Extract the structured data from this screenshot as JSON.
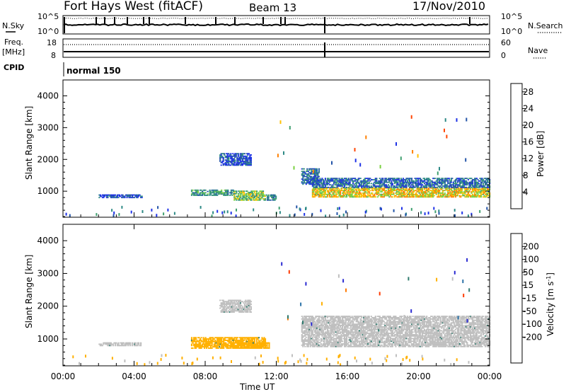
{
  "header": {
    "station": "Fort Hays West (fitACF)",
    "beam": "Beam 13",
    "date": "17/Nov/2010"
  },
  "panels": {
    "nsky_label": "N.Sky",
    "nsearch_label": "N.Search",
    "nsky_ticks": [
      "10^5",
      "10^0"
    ],
    "nsearch_ticks": [
      "10^5",
      "10^0"
    ],
    "freq_label": "Freq.",
    "freq_unit": "[MHz]",
    "freq_ticks": [
      "18",
      "8"
    ],
    "nave_label": "Nave",
    "nave_ticks": [
      "60",
      "0"
    ],
    "cpid_label": "CPID",
    "cpid_value": "normal 150"
  },
  "colors": {
    "power": [
      "#1e32e6",
      "#2354a8",
      "#2e8a86",
      "#40a070",
      "#7ad040",
      "#ffc000",
      "#ff8000",
      "#ff4400",
      "#e80000"
    ],
    "velocity": [
      "#2a2ad2",
      "#2c72a8",
      "#2e7a6e",
      "#70c73a",
      "#bfbfbf",
      "#bfbfbf",
      "#ffb000",
      "#ff7a00",
      "#ff3a00",
      "#e00000"
    ]
  },
  "chart_data": [
    {
      "type": "heatmap",
      "name": "power",
      "xlabel": "",
      "ylabel": "Slant Range [km]",
      "xlim": [
        "00:00",
        "24:00"
      ],
      "ylim": [
        180,
        4500
      ],
      "y_ticks": [
        "1000",
        "2000",
        "3000",
        "4000"
      ],
      "colorbar_label": "Power [dB]",
      "colorbar_ticks": [
        "4",
        "8",
        "12",
        "16",
        "20",
        "24",
        "28"
      ],
      "colorbar_range": [
        0,
        30
      ],
      "regions": [
        {
          "t_start": 2.0,
          "t_end": 4.4,
          "r_min": 780,
          "r_max": 900,
          "power": 4
        },
        {
          "t_start": 7.2,
          "t_end": 9.6,
          "r_min": 850,
          "r_max": 1050,
          "power": 10
        },
        {
          "t_start": 9.6,
          "t_end": 11.4,
          "r_min": 700,
          "r_max": 1000,
          "power": 14
        },
        {
          "t_start": 11.4,
          "t_end": 12.0,
          "r_min": 700,
          "r_max": 900,
          "power": 8
        },
        {
          "t_start": 8.8,
          "t_end": 10.6,
          "r_min": 1800,
          "r_max": 2200,
          "power": 4
        },
        {
          "t_start": 13.4,
          "t_end": 14.4,
          "r_min": 1200,
          "r_max": 1700,
          "power": 6
        },
        {
          "t_start": 14.0,
          "t_end": 24.0,
          "r_min": 800,
          "r_max": 1100,
          "power": 18
        },
        {
          "t_start": 14.0,
          "t_end": 24.0,
          "r_min": 1100,
          "r_max": 1400,
          "power": 6
        }
      ]
    },
    {
      "type": "heatmap",
      "name": "velocity",
      "xlabel": "Time UT",
      "ylabel": "Slant Range [km]",
      "x_ticks": [
        "00:00",
        "04:00",
        "08:00",
        "12:00",
        "16:00",
        "20:00",
        "00:00"
      ],
      "ylim": [
        180,
        4500
      ],
      "y_ticks": [
        "1000",
        "2000",
        "3000",
        "4000"
      ],
      "colorbar_label": "Velocity [m s^-1]",
      "colorbar_ticks": [
        "200",
        "100",
        "50",
        "15",
        "-15",
        "-50",
        "-100",
        "-200"
      ],
      "colorbar_range": [
        -250,
        250
      ],
      "regions": [
        {
          "t_start": 2.0,
          "t_end": 4.4,
          "r_min": 780,
          "r_max": 900,
          "velocity": 0
        },
        {
          "t_start": 7.2,
          "t_end": 11.4,
          "r_min": 700,
          "r_max": 1050,
          "velocity": -40
        },
        {
          "t_start": 9.4,
          "t_end": 11.6,
          "r_min": 700,
          "r_max": 900,
          "velocity": -40
        },
        {
          "t_start": 8.8,
          "t_end": 10.6,
          "r_min": 1800,
          "r_max": 2200,
          "velocity": 0
        },
        {
          "t_start": 13.4,
          "t_end": 24.0,
          "r_min": 750,
          "r_max": 1700,
          "velocity": 0
        }
      ]
    }
  ]
}
